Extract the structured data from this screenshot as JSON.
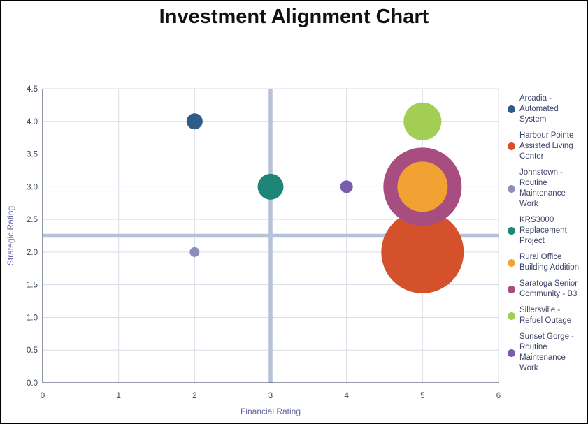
{
  "title": "Investment Alignment Chart",
  "chart_data": {
    "type": "scatter",
    "subtype": "bubble",
    "title": "Investment Alignment Chart",
    "xlabel": "Financial Rating",
    "ylabel": "Strategic Rating",
    "xlim": [
      0,
      6
    ],
    "ylim": [
      0,
      4.5
    ],
    "xticks": [
      "0",
      "1",
      "2",
      "3",
      "4",
      "5",
      "6"
    ],
    "yticks": [
      "0.0",
      "0.5",
      "1.0",
      "1.5",
      "2.0",
      "2.5",
      "3.0",
      "3.5",
      "4.0",
      "4.5"
    ],
    "grid": true,
    "legend_position": "right",
    "quadrant_lines": {
      "x": 3,
      "y": 2.25
    },
    "series": [
      {
        "name": "Arcadia - Automated System",
        "x": 2,
        "y": 4,
        "radius_px": 11.5,
        "color": "#2d5c8a"
      },
      {
        "name": "Harbour Pointe Assisted Living Center",
        "x": 5,
        "y": 2,
        "radius_px": 59,
        "color": "#d4512b"
      },
      {
        "name": "Johnstown - Routine Maintenance Work",
        "x": 2,
        "y": 2,
        "radius_px": 7,
        "color": "#8d8dbd"
      },
      {
        "name": "KRS3000 Replacement Project",
        "x": 3,
        "y": 3,
        "radius_px": 18.5,
        "color": "#1f8578"
      },
      {
        "name": "Rural Office Building Addition",
        "x": 5,
        "y": 3,
        "radius_px": 36,
        "color": "#f2a232"
      },
      {
        "name": "Saratoga Senior Community - B3",
        "x": 5,
        "y": 3,
        "radius_px": 56,
        "color": "#a84d7f"
      },
      {
        "name": "Sillersville - Refuel Outage",
        "x": 5,
        "y": 4,
        "radius_px": 27,
        "color": "#a2ce56"
      },
      {
        "name": "Sunset Gorge - Routine Maintenance Work",
        "x": 4,
        "y": 3,
        "radius_px": 9,
        "color": "#7a5caa"
      }
    ]
  },
  "colors": {
    "grid": "#d9dde8",
    "axis_line": "#565d73",
    "tick_label": "#3a4159",
    "axis_title": "#6466a3",
    "crosshair": "#b6c2d7",
    "legend_text": "#3d4266",
    "title": "#111111",
    "border": "#000000"
  }
}
